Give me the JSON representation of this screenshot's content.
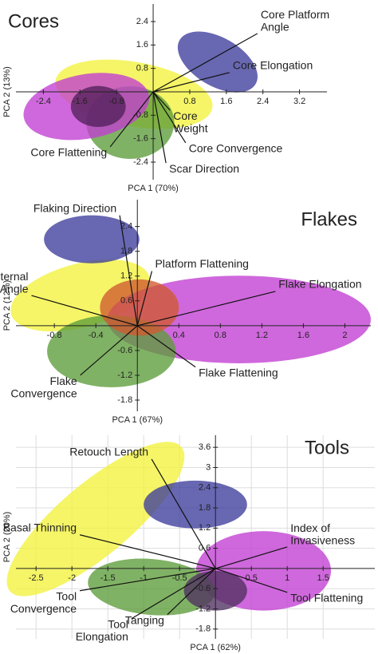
{
  "chart_data": [
    {
      "type": "biplot",
      "title": "Cores",
      "xlabel": "PCA 1 (70%)",
      "ylabel": "PCA 2 (13%)",
      "xlim": [
        -3.0,
        3.8
      ],
      "ylim": [
        -3.0,
        3.0
      ],
      "xticks": [
        -2.4,
        -1.6,
        -0.8,
        0.8,
        1.6,
        2.4,
        3.2
      ],
      "yticks": [
        2.4,
        1.6,
        0.8,
        -0.8,
        -1.6,
        -2.4
      ],
      "grid": false,
      "clouds": [
        {
          "color": "#f2f23c",
          "cx": -0.42,
          "cy": -0.08,
          "rx": 1.74,
          "ry": 1.1,
          "rotate": -10
        },
        {
          "color": "#3c3c9c",
          "cx": 1.41,
          "cy": 1.02,
          "rx": 0.96,
          "ry": 0.83,
          "rotate": -30
        },
        {
          "color": "#5c9c3a",
          "cx": -0.5,
          "cy": -1.05,
          "rx": 0.96,
          "ry": 1.24,
          "rotate": 0
        },
        {
          "color": "#c23ed2",
          "cx": -1.46,
          "cy": -0.5,
          "rx": 1.39,
          "ry": 1.1,
          "rotate": 10
        },
        {
          "color": "#52205a",
          "cx": -1.2,
          "cy": -0.5,
          "rx": 0.6,
          "ry": 0.7,
          "rotate": 0
        }
      ],
      "vectors": [
        {
          "label": "Core Platform\nAngle",
          "x": 2.28,
          "y": 1.99
        },
        {
          "label": "Core Elongation",
          "x": 1.67,
          "y": 0.66
        },
        {
          "label": "Core\nWeight",
          "x": 0.37,
          "y": -0.63
        },
        {
          "label": "Core Convergence",
          "x": 0.71,
          "y": -1.74
        },
        {
          "label": "Scar Direction",
          "x": 0.28,
          "y": -2.43
        },
        {
          "label": "Core Flattening",
          "x": -0.94,
          "y": -1.88
        }
      ]
    },
    {
      "type": "biplot",
      "title": "Flakes",
      "xlabel": "PCA 1 (67%)",
      "ylabel": "PCA 2 (12%)",
      "xlim": [
        -1.17,
        2.25
      ],
      "ylim": [
        -2.07,
        3.05
      ],
      "xticks": [
        -0.8,
        -0.4,
        0.4,
        0.8,
        1.2,
        1.6,
        2.0
      ],
      "yticks": [
        2.4,
        1.8,
        1.2,
        0.6,
        -0.6,
        -1.2,
        -1.8
      ],
      "grid": false,
      "clouds": [
        {
          "color": "#f2f23c",
          "cx": -0.55,
          "cy": 0.73,
          "rx": 0.69,
          "ry": 0.77,
          "rotate": 15
        },
        {
          "color": "#3c3c9c",
          "cx": -0.44,
          "cy": 2.09,
          "rx": 0.46,
          "ry": 0.58,
          "rotate": 0
        },
        {
          "color": "#c23ed2",
          "cx": 0.98,
          "cy": 0.15,
          "rx": 1.27,
          "ry": 1.06,
          "rotate": 0
        },
        {
          "color": "#5c9c3a",
          "cx": -0.25,
          "cy": -0.62,
          "rx": 0.62,
          "ry": 0.87,
          "rotate": 0
        },
        {
          "color": "#d05a30",
          "cx": 0.02,
          "cy": 0.44,
          "rx": 0.38,
          "ry": 0.68,
          "rotate": 0
        }
      ],
      "vectors": [
        {
          "label": "Flaking Direction",
          "x": -0.17,
          "y": 2.67
        },
        {
          "label": "Internal\nPlatform Angle",
          "x": -1.02,
          "y": 0.73
        },
        {
          "label": "Platform Flattening",
          "x": 0.14,
          "y": 1.32
        },
        {
          "label": "Flake Elongation",
          "x": 1.33,
          "y": 0.83
        },
        {
          "label": "Flake Flattening",
          "x": 0.56,
          "y": -1.0
        },
        {
          "label": "Flake\nConvergence",
          "x": -0.55,
          "y": -1.2
        }
      ]
    },
    {
      "type": "biplot",
      "title": "Tools",
      "xlabel": "PCA 1 (62%)",
      "ylabel": "PCA 2 (20%)",
      "xlim": [
        -2.78,
        2.22
      ],
      "ylim": [
        -2.09,
        3.96
      ],
      "xticks": [
        -2.5,
        -2.0,
        -1.5,
        -1.0,
        -0.5,
        0.5,
        1.0,
        1.5
      ],
      "yticks": [
        3.6,
        3.0,
        2.4,
        1.8,
        1.2,
        0.6,
        -0.6,
        -1.2,
        -1.8
      ],
      "grid": true,
      "clouds": [
        {
          "color": "#f2f23c",
          "cx": -1.67,
          "cy": 1.47,
          "rx": 1.56,
          "ry": 1.07,
          "rotate": 40
        },
        {
          "color": "#3c3c9c",
          "cx": -0.28,
          "cy": 1.9,
          "rx": 0.72,
          "ry": 0.71,
          "rotate": 0
        },
        {
          "color": "#c23ed2",
          "cx": 0.67,
          "cy": -0.07,
          "rx": 0.94,
          "ry": 1.18,
          "rotate": 0
        },
        {
          "color": "#5c9c3a",
          "cx": -0.89,
          "cy": -0.55,
          "rx": 0.89,
          "ry": 0.83,
          "rotate": -5
        },
        {
          "color": "#503060",
          "cx": 0.0,
          "cy": -0.66,
          "rx": 0.44,
          "ry": 0.59,
          "rotate": 0
        }
      ],
      "vectors": [
        {
          "label": "Retouch Length",
          "x": -0.89,
          "y": 3.25
        },
        {
          "label": "Basal Thinning",
          "x": -1.89,
          "y": 1.0
        },
        {
          "label": "Index of\nInvasiveness",
          "x": 1.0,
          "y": 0.64
        },
        {
          "label": "Tool Flattening",
          "x": 1.0,
          "y": -0.71
        },
        {
          "label": "Tool\nConvergence",
          "x": -1.89,
          "y": -0.66
        },
        {
          "label": "Tool\nElongation",
          "x": -1.17,
          "y": -1.49
        },
        {
          "label": "Tanging",
          "x": -0.67,
          "y": -1.37
        }
      ]
    }
  ]
}
